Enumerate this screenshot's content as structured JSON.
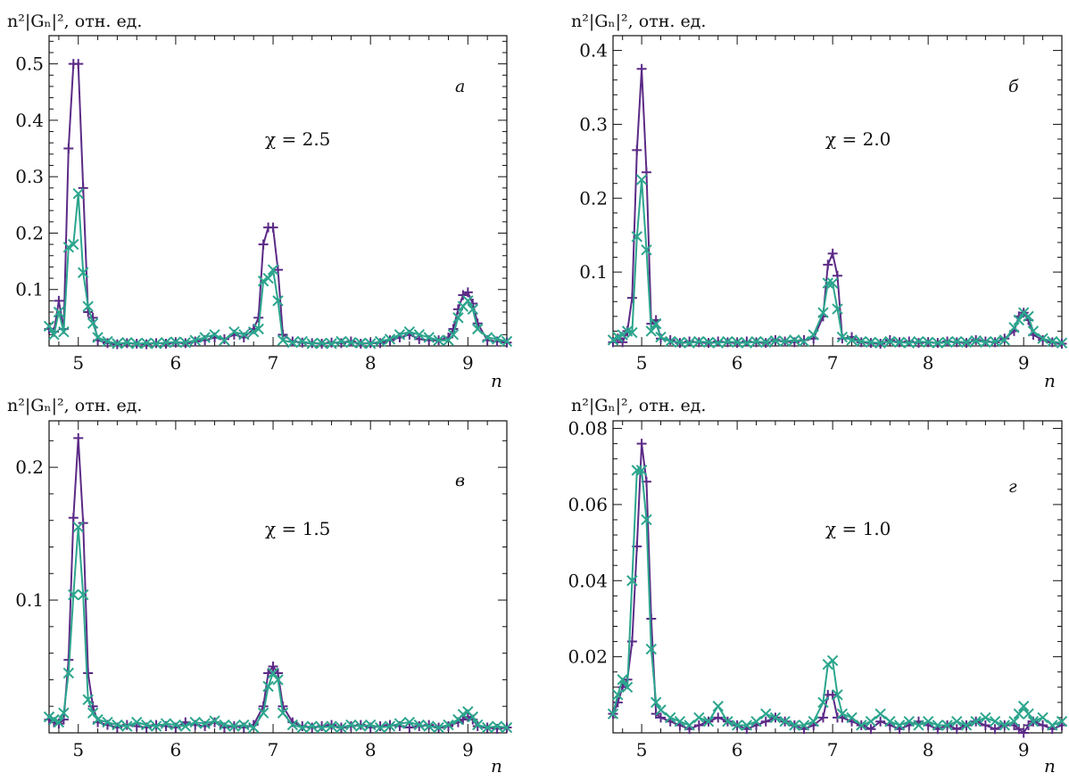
{
  "colors": {
    "series_plus": "#5b2a86",
    "series_cross": "#2ca58d",
    "axis": "#111111"
  },
  "chart_data": [
    {
      "type": "line",
      "panel_label": "а",
      "annotation": "χ = 2.5",
      "ylabel": "n²|Gₙ|², отн. ед.",
      "xlabel": "n",
      "xlim": [
        4.7,
        9.4
      ],
      "ylim": [
        0.0,
        0.55
      ],
      "xticks": [
        5,
        6,
        7,
        8,
        9
      ],
      "yticks": [
        0.1,
        0.2,
        0.3,
        0.4,
        0.5
      ],
      "series": [
        {
          "marker": "plus",
          "x": [
            4.7,
            4.75,
            4.8,
            4.85,
            4.9,
            4.95,
            5.0,
            5.05,
            5.1,
            5.15,
            5.2,
            5.3,
            5.4,
            5.5,
            5.6,
            5.7,
            5.8,
            5.9,
            6.0,
            6.1,
            6.2,
            6.3,
            6.4,
            6.5,
            6.6,
            6.7,
            6.8,
            6.85,
            6.9,
            6.95,
            7.0,
            7.05,
            7.1,
            7.2,
            7.3,
            7.4,
            7.5,
            7.6,
            7.7,
            7.8,
            7.9,
            8.0,
            8.1,
            8.2,
            8.3,
            8.4,
            8.5,
            8.6,
            8.7,
            8.8,
            8.85,
            8.9,
            8.95,
            9.0,
            9.05,
            9.1,
            9.2,
            9.3,
            9.4
          ],
          "y": [
            0.03,
            0.025,
            0.08,
            0.03,
            0.35,
            0.5,
            0.5,
            0.28,
            0.06,
            0.05,
            0.01,
            0.005,
            0.003,
            0.005,
            0.004,
            0.003,
            0.005,
            0.004,
            0.006,
            0.005,
            0.008,
            0.01,
            0.015,
            0.012,
            0.02,
            0.015,
            0.03,
            0.05,
            0.18,
            0.21,
            0.21,
            0.135,
            0.02,
            0.008,
            0.006,
            0.005,
            0.004,
            0.006,
            0.005,
            0.008,
            0.004,
            0.005,
            0.005,
            0.01,
            0.015,
            0.02,
            0.012,
            0.01,
            0.01,
            0.015,
            0.03,
            0.065,
            0.09,
            0.095,
            0.075,
            0.04,
            0.01,
            0.008,
            0.006
          ]
        },
        {
          "marker": "cross",
          "x": [
            4.7,
            4.75,
            4.8,
            4.85,
            4.9,
            4.95,
            5.0,
            5.05,
            5.1,
            5.15,
            5.2,
            5.3,
            5.4,
            5.5,
            5.6,
            5.7,
            5.8,
            5.9,
            6.0,
            6.1,
            6.2,
            6.3,
            6.4,
            6.5,
            6.6,
            6.7,
            6.8,
            6.85,
            6.9,
            6.95,
            7.0,
            7.05,
            7.1,
            7.2,
            7.3,
            7.4,
            7.5,
            7.6,
            7.7,
            7.8,
            7.9,
            8.0,
            8.1,
            8.2,
            8.3,
            8.4,
            8.5,
            8.6,
            8.7,
            8.8,
            8.85,
            8.9,
            8.95,
            9.0,
            9.05,
            9.1,
            9.2,
            9.3,
            9.4
          ],
          "y": [
            0.035,
            0.02,
            0.06,
            0.025,
            0.175,
            0.18,
            0.27,
            0.13,
            0.07,
            0.04,
            0.015,
            0.008,
            0.004,
            0.006,
            0.004,
            0.005,
            0.004,
            0.006,
            0.007,
            0.006,
            0.01,
            0.015,
            0.02,
            0.01,
            0.025,
            0.02,
            0.025,
            0.03,
            0.115,
            0.12,
            0.135,
            0.08,
            0.01,
            0.006,
            0.008,
            0.004,
            0.005,
            0.004,
            0.008,
            0.006,
            0.005,
            0.004,
            0.008,
            0.012,
            0.02,
            0.025,
            0.02,
            0.015,
            0.01,
            0.01,
            0.02,
            0.05,
            0.07,
            0.08,
            0.065,
            0.03,
            0.015,
            0.012,
            0.008
          ]
        }
      ]
    },
    {
      "type": "line",
      "panel_label": "б",
      "annotation": "χ = 2.0",
      "ylabel": "n²|Gₙ|², отн. ед.",
      "xlabel": "n",
      "xlim": [
        4.7,
        9.4
      ],
      "ylim": [
        0.0,
        0.42
      ],
      "xticks": [
        5,
        6,
        7,
        8,
        9
      ],
      "yticks": [
        0.1,
        0.2,
        0.3,
        0.4
      ],
      "series": [
        {
          "marker": "plus",
          "x": [
            4.7,
            4.75,
            4.8,
            4.85,
            4.9,
            4.95,
            5.0,
            5.05,
            5.1,
            5.15,
            5.2,
            5.3,
            5.4,
            5.5,
            5.6,
            5.7,
            5.8,
            5.9,
            6.0,
            6.1,
            6.2,
            6.3,
            6.4,
            6.5,
            6.6,
            6.7,
            6.8,
            6.9,
            6.95,
            7.0,
            7.05,
            7.1,
            7.2,
            7.3,
            7.4,
            7.5,
            7.6,
            7.7,
            7.8,
            7.9,
            8.0,
            8.1,
            8.2,
            8.3,
            8.4,
            8.5,
            8.6,
            8.7,
            8.8,
            8.9,
            8.95,
            9.0,
            9.05,
            9.1,
            9.2,
            9.3,
            9.4
          ],
          "y": [
            0.005,
            0.01,
            0.005,
            0.02,
            0.065,
            0.265,
            0.375,
            0.235,
            0.03,
            0.035,
            0.01,
            0.008,
            0.004,
            0.006,
            0.005,
            0.004,
            0.006,
            0.005,
            0.004,
            0.006,
            0.005,
            0.004,
            0.008,
            0.006,
            0.005,
            0.008,
            0.01,
            0.04,
            0.11,
            0.125,
            0.095,
            0.01,
            0.012,
            0.005,
            0.004,
            0.003,
            0.008,
            0.005,
            0.006,
            0.004,
            0.005,
            0.004,
            0.006,
            0.005,
            0.004,
            0.008,
            0.006,
            0.005,
            0.01,
            0.02,
            0.04,
            0.045,
            0.035,
            0.015,
            0.008,
            0.005,
            0.003
          ]
        },
        {
          "marker": "cross",
          "x": [
            4.7,
            4.75,
            4.8,
            4.85,
            4.9,
            4.95,
            5.0,
            5.05,
            5.1,
            5.15,
            5.2,
            5.3,
            5.4,
            5.5,
            5.6,
            5.7,
            5.8,
            5.9,
            6.0,
            6.1,
            6.2,
            6.3,
            6.4,
            6.5,
            6.6,
            6.7,
            6.8,
            6.9,
            6.95,
            7.0,
            7.05,
            7.1,
            7.2,
            7.3,
            7.4,
            7.5,
            7.6,
            7.7,
            7.8,
            7.9,
            8.0,
            8.1,
            8.2,
            8.3,
            8.4,
            8.5,
            8.6,
            8.7,
            8.8,
            8.9,
            8.95,
            9.0,
            9.05,
            9.1,
            9.2,
            9.3,
            9.4
          ],
          "y": [
            0.008,
            0.012,
            0.015,
            0.02,
            0.018,
            0.148,
            0.225,
            0.13,
            0.02,
            0.03,
            0.012,
            0.006,
            0.005,
            0.004,
            0.006,
            0.005,
            0.004,
            0.006,
            0.005,
            0.004,
            0.006,
            0.005,
            0.007,
            0.006,
            0.008,
            0.006,
            0.015,
            0.045,
            0.085,
            0.085,
            0.05,
            0.012,
            0.008,
            0.006,
            0.005,
            0.004,
            0.006,
            0.005,
            0.004,
            0.006,
            0.005,
            0.004,
            0.005,
            0.006,
            0.005,
            0.007,
            0.005,
            0.006,
            0.008,
            0.025,
            0.035,
            0.045,
            0.04,
            0.02,
            0.01,
            0.006,
            0.004
          ]
        }
      ]
    },
    {
      "type": "line",
      "panel_label": "в",
      "annotation": "χ = 1.5",
      "ylabel": "n²|Gₙ|², отн. ед.",
      "xlabel": "n",
      "xlim": [
        4.7,
        9.4
      ],
      "ylim": [
        0.0,
        0.235
      ],
      "xticks": [
        5,
        6,
        7,
        8,
        9
      ],
      "yticks": [
        0.1,
        0.2
      ],
      "series": [
        {
          "marker": "plus",
          "x": [
            4.7,
            4.75,
            4.8,
            4.85,
            4.9,
            4.95,
            5.0,
            5.05,
            5.1,
            5.15,
            5.2,
            5.3,
            5.4,
            5.5,
            5.6,
            5.7,
            5.8,
            5.9,
            6.0,
            6.1,
            6.2,
            6.3,
            6.4,
            6.5,
            6.6,
            6.7,
            6.8,
            6.9,
            6.95,
            7.0,
            7.05,
            7.1,
            7.2,
            7.3,
            7.4,
            7.5,
            7.6,
            7.7,
            7.8,
            7.9,
            8.0,
            8.1,
            8.2,
            8.3,
            8.4,
            8.5,
            8.6,
            8.7,
            8.8,
            8.9,
            8.95,
            9.0,
            9.05,
            9.1,
            9.2,
            9.3,
            9.4
          ],
          "y": [
            0.01,
            0.008,
            0.007,
            0.01,
            0.055,
            0.162,
            0.222,
            0.158,
            0.045,
            0.02,
            0.008,
            0.006,
            0.004,
            0.006,
            0.005,
            0.004,
            0.006,
            0.005,
            0.004,
            0.008,
            0.006,
            0.005,
            0.008,
            0.004,
            0.005,
            0.004,
            0.006,
            0.02,
            0.045,
            0.05,
            0.045,
            0.02,
            0.008,
            0.005,
            0.004,
            0.005,
            0.006,
            0.004,
            0.005,
            0.006,
            0.004,
            0.005,
            0.006,
            0.005,
            0.004,
            0.005,
            0.006,
            0.004,
            0.005,
            0.008,
            0.01,
            0.012,
            0.01,
            0.005,
            0.004,
            0.003,
            0.004
          ]
        },
        {
          "marker": "cross",
          "x": [
            4.7,
            4.75,
            4.8,
            4.85,
            4.9,
            4.95,
            5.0,
            5.05,
            5.1,
            5.15,
            5.2,
            5.3,
            5.4,
            5.5,
            5.6,
            5.7,
            5.8,
            5.9,
            6.0,
            6.1,
            6.2,
            6.3,
            6.4,
            6.5,
            6.6,
            6.7,
            6.8,
            6.9,
            6.95,
            7.0,
            7.05,
            7.1,
            7.2,
            7.3,
            7.4,
            7.5,
            7.6,
            7.7,
            7.8,
            7.9,
            8.0,
            8.1,
            8.2,
            8.3,
            8.4,
            8.5,
            8.6,
            8.7,
            8.8,
            8.9,
            8.95,
            9.0,
            9.05,
            9.1,
            9.2,
            9.3,
            9.4
          ],
          "y": [
            0.012,
            0.01,
            0.008,
            0.015,
            0.045,
            0.104,
            0.155,
            0.104,
            0.025,
            0.015,
            0.01,
            0.008,
            0.006,
            0.005,
            0.008,
            0.006,
            0.005,
            0.007,
            0.006,
            0.005,
            0.008,
            0.007,
            0.009,
            0.006,
            0.005,
            0.006,
            0.004,
            0.015,
            0.035,
            0.045,
            0.04,
            0.015,
            0.006,
            0.004,
            0.005,
            0.004,
            0.005,
            0.004,
            0.006,
            0.005,
            0.006,
            0.004,
            0.005,
            0.007,
            0.008,
            0.006,
            0.005,
            0.004,
            0.006,
            0.01,
            0.014,
            0.016,
            0.012,
            0.006,
            0.004,
            0.005,
            0.004
          ]
        }
      ]
    },
    {
      "type": "line",
      "panel_label": "г",
      "annotation": "χ = 1.0",
      "ylabel": "n²|Gₙ|², отн. ед.",
      "xlabel": "n",
      "xlim": [
        4.7,
        9.4
      ],
      "ylim": [
        0.0,
        0.082
      ],
      "xticks": [
        5,
        6,
        7,
        8,
        9
      ],
      "yticks": [
        0.02,
        0.04,
        0.06,
        0.08
      ],
      "series": [
        {
          "marker": "plus",
          "x": [
            4.7,
            4.75,
            4.8,
            4.85,
            4.9,
            4.95,
            5.0,
            5.05,
            5.1,
            5.15,
            5.2,
            5.3,
            5.4,
            5.5,
            5.6,
            5.7,
            5.8,
            5.9,
            6.0,
            6.1,
            6.2,
            6.3,
            6.4,
            6.5,
            6.6,
            6.7,
            6.8,
            6.9,
            6.95,
            7.0,
            7.05,
            7.1,
            7.2,
            7.3,
            7.4,
            7.5,
            7.6,
            7.7,
            7.8,
            7.9,
            8.0,
            8.1,
            8.2,
            8.3,
            8.4,
            8.5,
            8.6,
            8.7,
            8.8,
            8.9,
            8.95,
            9.0,
            9.05,
            9.1,
            9.2,
            9.3,
            9.4
          ],
          "y": [
            0.005,
            0.008,
            0.012,
            0.014,
            0.024,
            0.049,
            0.076,
            0.066,
            0.03,
            0.005,
            0.004,
            0.003,
            0.002,
            0.001,
            0.002,
            0.003,
            0.004,
            0.003,
            0.002,
            0.001,
            0.002,
            0.003,
            0.004,
            0.003,
            0.002,
            0.001,
            0.002,
            0.004,
            0.01,
            0.01,
            0.004,
            0.004,
            0.003,
            0.002,
            0.001,
            0.003,
            0.002,
            0.001,
            0.002,
            0.003,
            0.002,
            0.001,
            0.002,
            0.001,
            0.002,
            0.003,
            0.002,
            0.001,
            0.002,
            0.002,
            0.001,
            0.0,
            0.002,
            0.003,
            0.002,
            0.001,
            0.002
          ]
        },
        {
          "marker": "cross",
          "x": [
            4.7,
            4.75,
            4.8,
            4.85,
            4.9,
            4.95,
            5.0,
            5.05,
            5.1,
            5.15,
            5.2,
            5.3,
            5.4,
            5.5,
            5.6,
            5.7,
            5.8,
            5.9,
            6.0,
            6.1,
            6.2,
            6.3,
            6.4,
            6.5,
            6.6,
            6.7,
            6.8,
            6.9,
            6.95,
            7.0,
            7.05,
            7.1,
            7.2,
            7.3,
            7.4,
            7.5,
            7.6,
            7.7,
            7.8,
            7.9,
            8.0,
            8.1,
            8.2,
            8.3,
            8.4,
            8.5,
            8.6,
            8.7,
            8.8,
            8.9,
            8.95,
            9.0,
            9.05,
            9.1,
            9.2,
            9.3,
            9.4
          ],
          "y": [
            0.005,
            0.01,
            0.014,
            0.012,
            0.04,
            0.069,
            0.069,
            0.056,
            0.022,
            0.008,
            0.006,
            0.004,
            0.003,
            0.002,
            0.004,
            0.003,
            0.007,
            0.003,
            0.002,
            0.002,
            0.003,
            0.005,
            0.004,
            0.003,
            0.002,
            0.002,
            0.003,
            0.008,
            0.018,
            0.019,
            0.01,
            0.005,
            0.004,
            0.002,
            0.003,
            0.005,
            0.003,
            0.002,
            0.003,
            0.002,
            0.003,
            0.002,
            0.002,
            0.003,
            0.002,
            0.003,
            0.004,
            0.003,
            0.002,
            0.003,
            0.005,
            0.007,
            0.005,
            0.003,
            0.004,
            0.002,
            0.003
          ]
        }
      ]
    }
  ]
}
